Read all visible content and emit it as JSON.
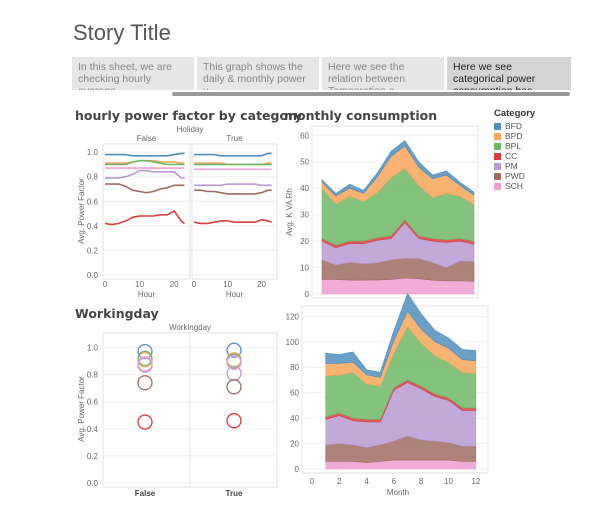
{
  "story": {
    "title": "Story Title",
    "points": [
      {
        "text": "In this sheet, we are checking hourly average.."
      },
      {
        "text": "This graph shows the daily & monthly power u.."
      },
      {
        "text": "Here we see the relation between Temperation a.."
      },
      {
        "text": "Here we see categorical power consumption bas.."
      }
    ],
    "active_index": 3
  },
  "colors": {
    "BFD": "#4e8fbd",
    "BPD": "#f9a55a",
    "BPL": "#6db866",
    "CC": "#d93d3d",
    "PM": "#b99ad4",
    "PWD": "#9e6c62",
    "SCH": "#ef9fd1"
  },
  "legend": {
    "title": "Category",
    "items": [
      "BFD",
      "BPD",
      "BPL",
      "CC",
      "PM",
      "PWD",
      "SCH"
    ]
  },
  "chart_data": [
    {
      "id": "hourly",
      "type": "line",
      "title": "hourly power factor by category",
      "panel_header": "Holiday",
      "panels": [
        "False",
        "True"
      ],
      "xlabel": "Hour",
      "ylabel": "Avg. Power Factor",
      "xlim": [
        0,
        24
      ],
      "ylim": [
        0,
        1.05
      ],
      "x_ticks": [
        0,
        10,
        20
      ],
      "y_ticks": [
        "0.0",
        "0.2",
        "0.4",
        "0.6",
        "0.8",
        "1.0"
      ],
      "x": [
        0,
        2,
        4,
        6,
        8,
        10,
        12,
        14,
        16,
        18,
        20,
        22,
        23
      ],
      "series": [
        {
          "name": "BFD",
          "False": [
            0.98,
            0.98,
            0.98,
            0.98,
            0.97,
            0.97,
            0.97,
            0.97,
            0.97,
            0.97,
            0.98,
            0.99,
            0.99
          ],
          "True": [
            0.98,
            0.98,
            0.98,
            0.98,
            0.97,
            0.97,
            0.97,
            0.97,
            0.97,
            0.97,
            0.97,
            0.99,
            0.99
          ]
        },
        {
          "name": "BPD",
          "False": [
            0.91,
            0.91,
            0.91,
            0.91,
            0.92,
            0.93,
            0.93,
            0.93,
            0.92,
            0.92,
            0.92,
            0.91,
            0.91
          ],
          "True": [
            0.91,
            0.91,
            0.91,
            0.91,
            0.91,
            0.9,
            0.9,
            0.9,
            0.9,
            0.9,
            0.9,
            0.91,
            0.91
          ]
        },
        {
          "name": "BPL",
          "False": [
            0.9,
            0.9,
            0.9,
            0.9,
            0.92,
            0.93,
            0.93,
            0.92,
            0.91,
            0.9,
            0.9,
            0.9,
            0.9
          ],
          "True": [
            0.9,
            0.9,
            0.9,
            0.9,
            0.9,
            0.9,
            0.9,
            0.9,
            0.9,
            0.9,
            0.9,
            0.9,
            0.9
          ]
        },
        {
          "name": "CC",
          "False": [
            0.42,
            0.41,
            0.42,
            0.44,
            0.47,
            0.48,
            0.48,
            0.48,
            0.49,
            0.49,
            0.52,
            0.44,
            0.42
          ],
          "True": [
            0.43,
            0.42,
            0.42,
            0.43,
            0.44,
            0.44,
            0.43,
            0.43,
            0.43,
            0.43,
            0.45,
            0.44,
            0.43
          ]
        },
        {
          "name": "PM",
          "False": [
            0.79,
            0.79,
            0.79,
            0.8,
            0.82,
            0.85,
            0.85,
            0.84,
            0.84,
            0.84,
            0.84,
            0.79,
            0.79
          ],
          "True": [
            0.73,
            0.73,
            0.73,
            0.73,
            0.73,
            0.74,
            0.74,
            0.74,
            0.74,
            0.74,
            0.73,
            0.73,
            0.73
          ]
        },
        {
          "name": "PWD",
          "False": [
            0.74,
            0.74,
            0.74,
            0.72,
            0.69,
            0.68,
            0.67,
            0.68,
            0.7,
            0.71,
            0.73,
            0.73,
            0.73
          ],
          "True": [
            0.69,
            0.69,
            0.68,
            0.68,
            0.67,
            0.66,
            0.66,
            0.66,
            0.66,
            0.66,
            0.67,
            0.69,
            0.69
          ]
        },
        {
          "name": "SCH",
          "False": [
            0.87,
            0.87,
            0.87,
            0.87,
            0.87,
            0.87,
            0.87,
            0.87,
            0.87,
            0.87,
            0.87,
            0.87,
            0.87
          ],
          "True": [
            0.86,
            0.86,
            0.86,
            0.86,
            0.86,
            0.86,
            0.86,
            0.86,
            0.86,
            0.86,
            0.86,
            0.86,
            0.86
          ]
        }
      ]
    },
    {
      "id": "monthly_top",
      "type": "area",
      "title": "monthly consumption",
      "xlabel": "",
      "ylabel": "Avg. K VA Rh",
      "xlim": [
        1,
        12
      ],
      "ylim": [
        0,
        62
      ],
      "y_ticks": [
        0,
        10,
        20,
        30,
        40,
        50,
        60
      ],
      "x": [
        1,
        2,
        3,
        4,
        5,
        6,
        7,
        8,
        9,
        10,
        11,
        12
      ],
      "stack_order": [
        "SCH",
        "PWD",
        "PM",
        "CC",
        "BPL",
        "BPD",
        "BFD"
      ],
      "series": [
        {
          "name": "SCH",
          "values": [
            5.5,
            5.5,
            5.2,
            5.2,
            5.3,
            5.5,
            6,
            5.8,
            5.2,
            5.0,
            5.0,
            4.8
          ]
        },
        {
          "name": "PWD",
          "values": [
            7.5,
            5.5,
            6.8,
            6.3,
            6.5,
            7.5,
            7.5,
            7.7,
            6.8,
            5.0,
            7.5,
            7.5
          ]
        },
        {
          "name": "PM",
          "values": [
            7.0,
            6.5,
            7.0,
            7.5,
            8.5,
            8.0,
            13.5,
            7.5,
            8.0,
            9.5,
            7.5,
            6.5
          ]
        },
        {
          "name": "CC",
          "values": [
            1.0,
            1.0,
            1.0,
            1.0,
            1.0,
            1.0,
            1.0,
            1.0,
            1.0,
            1.0,
            1.0,
            1.0
          ]
        },
        {
          "name": "BPL",
          "values": [
            19.0,
            15.5,
            17.0,
            15.0,
            17.0,
            22.0,
            19.5,
            19.0,
            15.5,
            17.5,
            16.0,
            14.0
          ]
        },
        {
          "name": "BPD",
          "values": [
            2.2,
            3.0,
            3.0,
            3.0,
            6.0,
            8.0,
            8.5,
            7.0,
            7.0,
            7.0,
            4.0,
            3.5
          ]
        },
        {
          "name": "BFD",
          "values": [
            1.0,
            1.0,
            1.5,
            1.2,
            1.5,
            2.0,
            2.0,
            2.0,
            1.5,
            1.5,
            1.2,
            1.2
          ]
        }
      ]
    },
    {
      "id": "working",
      "type": "scatter",
      "title": "Workingday",
      "panel_header": "Workingday",
      "categories": [
        "False",
        "True"
      ],
      "xlabel": "",
      "ylabel": "Avg. Power Factor",
      "ylim": [
        0,
        1.1
      ],
      "y_ticks": [
        "0.0",
        "0.2",
        "0.4",
        "0.6",
        "0.8",
        "1.0"
      ],
      "series": [
        {
          "name": "BFD",
          "values": [
            0.97,
            0.98
          ]
        },
        {
          "name": "BPD",
          "values": [
            0.91,
            0.91
          ]
        },
        {
          "name": "BPL",
          "values": [
            0.92,
            0.9
          ]
        },
        {
          "name": "CC",
          "values": [
            0.45,
            0.46
          ]
        },
        {
          "name": "PM",
          "values": [
            0.87,
            0.81
          ]
        },
        {
          "name": "PWD",
          "values": [
            0.74,
            0.71
          ]
        },
        {
          "name": "SCH",
          "values": [
            0.88,
            0.89
          ]
        }
      ]
    },
    {
      "id": "monthly_bottom",
      "type": "area",
      "title": "",
      "xlabel": "Month",
      "ylabel": "",
      "xlim": [
        0,
        12.6
      ],
      "ylim": [
        0,
        125
      ],
      "x_ticks": [
        0,
        2,
        4,
        6,
        8,
        10,
        12
      ],
      "y_ticks": [
        0,
        20,
        40,
        60,
        80,
        100,
        120
      ],
      "x": [
        1,
        2,
        3,
        4,
        5,
        6,
        7,
        8,
        9,
        10,
        11,
        12
      ],
      "stack_order": [
        "SCH",
        "PWD",
        "PM",
        "CC",
        "BPL",
        "BPD",
        "BFD"
      ],
      "series": [
        {
          "name": "SCH",
          "values": [
            6,
            6,
            6,
            5,
            6,
            7,
            7,
            7,
            7,
            7,
            6,
            6
          ]
        },
        {
          "name": "PWD",
          "values": [
            13,
            14,
            13,
            12,
            13,
            15,
            19,
            16,
            15,
            14,
            12,
            12
          ]
        },
        {
          "name": "PM",
          "values": [
            20,
            22,
            19,
            20,
            18,
            40,
            42,
            40,
            35,
            33,
            28,
            28
          ]
        },
        {
          "name": "CC",
          "values": [
            2,
            2,
            2,
            2,
            2,
            2,
            2,
            2,
            2,
            2,
            2,
            2
          ]
        },
        {
          "name": "BPL",
          "values": [
            32,
            30,
            36,
            28,
            26,
            27,
            42,
            34,
            30,
            28,
            28,
            27
          ]
        },
        {
          "name": "BPD",
          "values": [
            10,
            9,
            8,
            7,
            7,
            10,
            12,
            11,
            11,
            11,
            10,
            10
          ]
        },
        {
          "name": "BFD",
          "values": [
            8,
            7,
            8,
            4,
            4,
            8,
            14,
            12,
            9,
            8,
            8,
            8
          ]
        }
      ]
    }
  ]
}
